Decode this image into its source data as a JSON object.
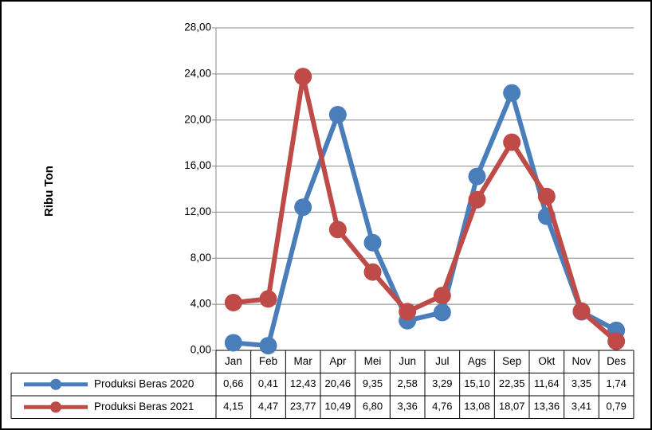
{
  "chart_data": {
    "type": "line",
    "y_label": "Ribu Ton",
    "categories": [
      "Jan",
      "Feb",
      "Mar",
      "Apr",
      "Mei",
      "Jun",
      "Jul",
      "Ags",
      "Sep",
      "Okt",
      "Nov",
      "Des"
    ],
    "series": [
      {
        "name": "Produksi Beras 2020",
        "color": "#4a7ebb",
        "values": [
          0.66,
          0.41,
          12.43,
          20.46,
          9.35,
          2.58,
          3.29,
          15.1,
          22.35,
          11.64,
          3.35,
          1.74
        ],
        "value_labels": [
          "0,66",
          "0,41",
          "12,43",
          "20,46",
          "9,35",
          "2,58",
          "3,29",
          "15,10",
          "22,35",
          "11,64",
          "3,35",
          "1,74"
        ]
      },
      {
        "name": "Produksi Beras 2021",
        "color": "#be4b48",
        "values": [
          4.15,
          4.47,
          23.77,
          10.49,
          6.8,
          3.36,
          4.76,
          13.08,
          18.07,
          13.36,
          3.41,
          0.79
        ],
        "value_labels": [
          "4,15",
          "4,47",
          "23,77",
          "10,49",
          "6,80",
          "3,36",
          "4,76",
          "13,08",
          "18,07",
          "13,36",
          "3,41",
          "0,79"
        ]
      }
    ],
    "ylim": [
      0,
      28
    ],
    "yticks": [
      {
        "value": 0,
        "label": "0,00"
      },
      {
        "value": 4,
        "label": "4,00"
      },
      {
        "value": 8,
        "label": "8,00"
      },
      {
        "value": 12,
        "label": "12,00"
      },
      {
        "value": 16,
        "label": "16,00"
      },
      {
        "value": 20,
        "label": "20,00"
      },
      {
        "value": 24,
        "label": "24,00"
      },
      {
        "value": 28,
        "label": "28,00"
      }
    ],
    "grid": true
  }
}
